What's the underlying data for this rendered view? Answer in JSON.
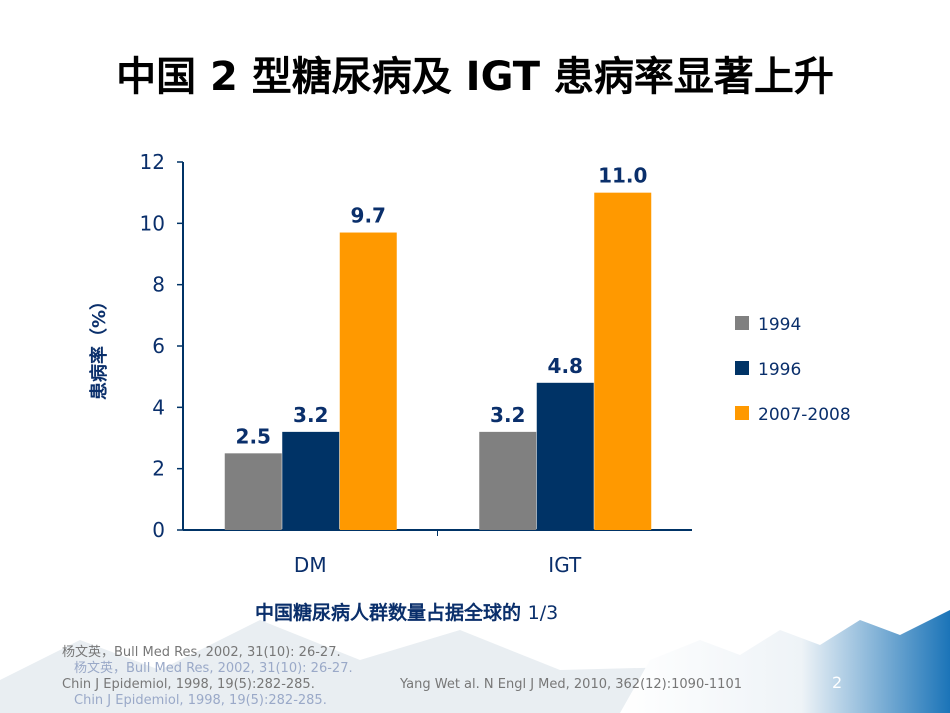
{
  "title": "中国 2 型糖尿病及 IGT 患病率显著上升",
  "subtitle_cn": "中国糖尿病人群数量占据全球的",
  "subtitle_num": "1/3",
  "footnotes": {
    "line1": "杨文英，Bull Med Res, 2002, 31(10): 26-27.",
    "line2": "Chin J Epidemiol, 1998, 19(5):282-285.",
    "line3": "Yang Wet al. N Engl J Med, 2010, 362(12):1090-1101",
    "page": "2"
  },
  "chart_data": {
    "type": "bar",
    "categories": [
      "DM",
      "IGT"
    ],
    "series": [
      {
        "name": "1994",
        "values": [
          2.5,
          3.2
        ],
        "labels": [
          "2.5",
          "3.2"
        ],
        "color": "#808080"
      },
      {
        "name": "1996",
        "values": [
          3.2,
          4.8
        ],
        "labels": [
          "3.2",
          "4.8"
        ],
        "color": "#003366"
      },
      {
        "name": "2007-2008",
        "values": [
          9.7,
          11.0
        ],
        "labels": [
          "9.7",
          "11.0"
        ],
        "color": "#ff9900"
      }
    ],
    "ylabel": "患病率（%）",
    "ylim": [
      0,
      12
    ],
    "yticks": [
      "0",
      "2",
      "4",
      "6",
      "8",
      "10",
      "12"
    ],
    "grid": false,
    "legend": "right"
  }
}
